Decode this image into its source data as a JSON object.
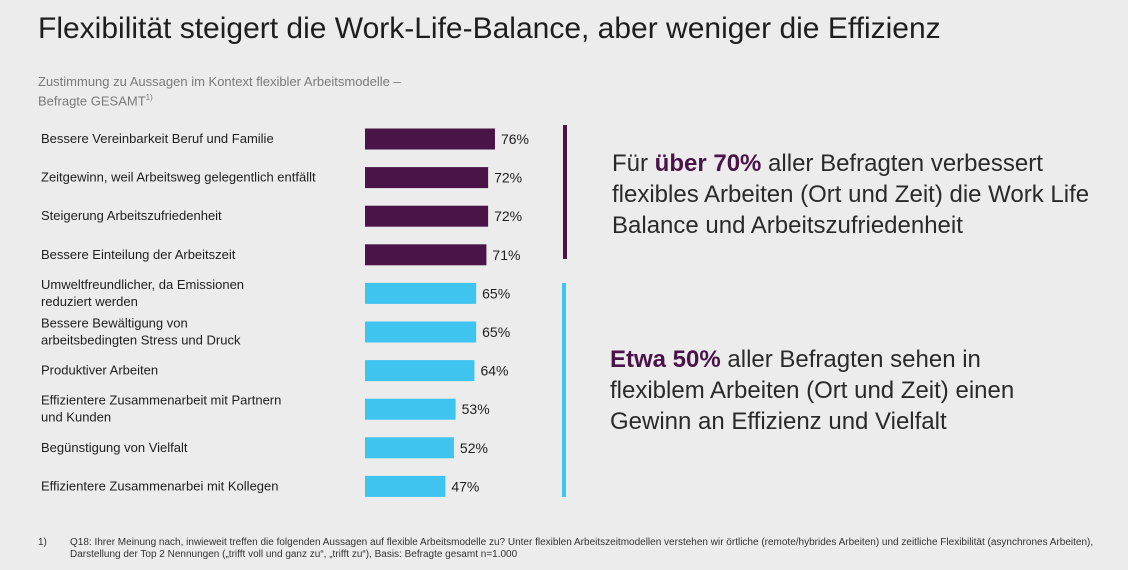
{
  "title": "Flexibilität steigert die Work-Life-Balance, aber weniger die Effizienz",
  "subtitle_line1": "Zustimmung zu Aussagen im Kontext flexibler Arbeitsmodelle –",
  "subtitle_line2": "Befragte GESAMT",
  "subtitle_sup": "1)",
  "colors": {
    "dark": "#4a1449",
    "light": "#3ec4ef"
  },
  "chart_data": {
    "type": "bar",
    "orientation": "horizontal",
    "categories": [
      [
        "Bessere Vereinbarkeit Beruf und Familie"
      ],
      [
        "Zeitgewinn, weil Arbeitsweg gelegentlich entfällt"
      ],
      [
        "Steigerung Arbeitszufriedenheit"
      ],
      [
        "Bessere Einteilung der Arbeitszeit"
      ],
      [
        "Umweltfreundlicher, da Emissionen",
        "reduziert werden"
      ],
      [
        "Bessere Bewältigung von",
        "arbeitsbedingten Stress und Druck"
      ],
      [
        "Produktiver Arbeiten"
      ],
      [
        "Effizientere Zusammenarbeit mit Partnern",
        "und Kunden"
      ],
      [
        "Begünstigung von Vielfalt"
      ],
      [
        "Effizientere Zusammenarbei mit Kollegen"
      ]
    ],
    "values": [
      76,
      72,
      72,
      71,
      65,
      65,
      64,
      53,
      52,
      47
    ],
    "value_labels": [
      "76%",
      "72%",
      "72%",
      "71%",
      "65%",
      "65%",
      "64%",
      "53%",
      "52%",
      "47%"
    ],
    "groups": [
      "dark",
      "dark",
      "dark",
      "dark",
      "light",
      "light",
      "light",
      "light",
      "light",
      "light"
    ],
    "xlim": [
      0,
      100
    ]
  },
  "callout1": {
    "bold": "über 70%",
    "pre": "Für ",
    "post": " aller Befragten verbessert flexibles Arbeiten (Ort und Zeit) die Work Life Balance und Arbeitszufriedenheit"
  },
  "callout2": {
    "bold": "Etwa 50%",
    "post": " aller Befragten sehen in flexiblem Arbeiten (Ort und Zeit) einen Gewinn an Effizienz und Vielfalt"
  },
  "footnote": {
    "num": "1)",
    "text": "Q18: Ihrer Meinung nach, inwieweit treffen die folgenden Aussagen auf flexible Arbeitsmodelle zu? Unter flexiblen Arbeitszeitmodellen verstehen wir örtliche (remote/hybrides Arbeiten) und zeitliche Flexibilität (asynchrones Arbeiten), Darstellung der Top 2 Nennungen („trifft voll und ganz zu“, „trifft zu“), Basis: Befragte gesamt n=1.000"
  }
}
